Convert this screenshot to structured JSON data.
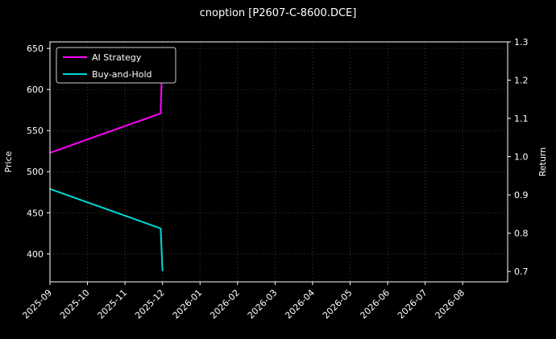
{
  "chart_data": {
    "type": "line",
    "title": "cnoption [P2607-C-8600.DCE]",
    "grid": true,
    "x_tick_labels": [
      "2025-09",
      "2025-10",
      "2025-11",
      "2025-12",
      "2026-01",
      "2026-02",
      "2026-03",
      "2026-04",
      "2026-05",
      "2026-06",
      "2026-07",
      "2026-08"
    ],
    "x_domain": [
      0,
      12.2
    ],
    "left_axis": {
      "label": "Price",
      "range": [
        366,
        658
      ],
      "ticks": [
        400,
        450,
        500,
        550,
        600,
        650
      ],
      "tick_labels": [
        "400",
        "450",
        "500",
        "550",
        "600",
        "650"
      ]
    },
    "right_axis": {
      "label": "Return",
      "range": [
        0.673,
        1.3
      ],
      "ticks": [
        0.7,
        0.8,
        0.9,
        1.0,
        1.1,
        1.2,
        1.3
      ],
      "tick_labels": [
        "0.7",
        "0.8",
        "0.9",
        "1.0",
        "1.1",
        "1.2",
        "1.3"
      ]
    },
    "series": [
      {
        "name": "AI Strategy",
        "color": "#ff00ff",
        "axis": "left",
        "points": [
          [
            0,
            523
          ],
          [
            2.95,
            571
          ],
          [
            3.0,
            649
          ]
        ]
      },
      {
        "name": "Buy-and-Hold",
        "color": "#00d7d7",
        "axis": "left",
        "points": [
          [
            0,
            479
          ],
          [
            2.95,
            431
          ],
          [
            3.0,
            379
          ]
        ]
      }
    ],
    "legend": {
      "position": "top-left",
      "entries": [
        "AI Strategy",
        "Buy-and-Hold"
      ]
    },
    "colors": {
      "background": "#000000",
      "text": "#ffffff",
      "grid": "#3a3a3a",
      "spine": "#ffffff",
      "tick": "#ffffff",
      "legend_bg": "#000000",
      "legend_border": "#cccccc"
    }
  }
}
